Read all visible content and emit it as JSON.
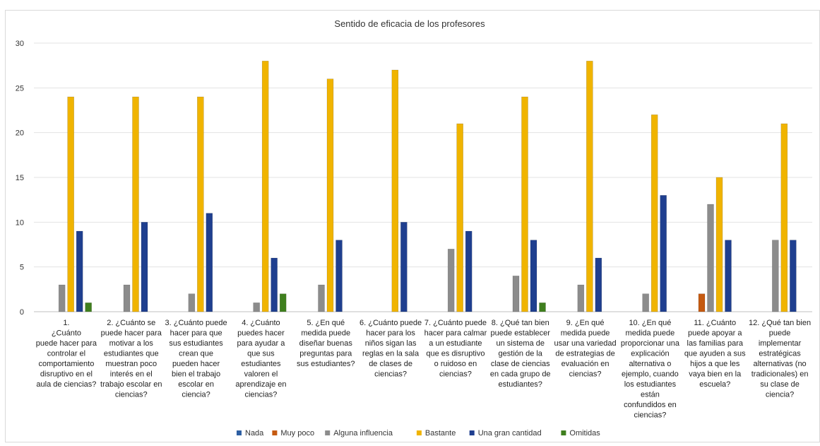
{
  "chart_data": {
    "type": "bar",
    "title": "Sentido de eficacia de los profesores",
    "xlabel": "",
    "ylabel": "",
    "ylim": [
      0,
      30
    ],
    "yticks": [
      0,
      5,
      10,
      15,
      20,
      25,
      30
    ],
    "grid": true,
    "legend_position": "bottom",
    "categories": [
      "1. ¿Cuánto puede hacer para controlar el comportamiento disruptivo en el aula de ciencias?",
      "2. ¿Cuánto se puede hacer para motivar a los estudiantes que muestran poco interés en el trabajo escolar en ciencias?",
      "3. ¿Cuánto puede hacer para que sus estudiantes crean que pueden hacer bien el trabajo escolar en ciencia?",
      "4. ¿Cuánto puedes hacer para ayudar a que sus estudiantes valoren el aprendizaje en ciencias?",
      "5. ¿En qué medida puede diseñar buenas preguntas para sus estudiantes?",
      "6. ¿Cuánto puede hacer para los niños sigan las reglas en la sala de clases de ciencias?",
      "7. ¿Cuánto puede hacer para calmar a un estudiante que es disruptivo o ruidoso en ciencias?",
      "8. ¿Qué tan bien puede establecer un sistema de gestión de la clase de ciencias en cada grupo de estudiantes?",
      "9. ¿En qué medida puede usar una variedad de estrategias de evaluación en ciencias?",
      "10. ¿En qué medida puede proporcionar una explicación alternativa o ejemplo, cuando los estudiantes están confundidos en ciencias?",
      "11. ¿Cuánto puede apoyar a las familias para que ayuden a sus hijos a que les vaya bien en la escuela?",
      "12. ¿Qué tan bien puede implementar estratégicas alternativas (no tradicionales) en su clase de ciencia?"
    ],
    "category_lines": [
      [
        "1.",
        "¿Cuánto",
        "puede hacer para",
        "controlar el",
        "comportamiento",
        "disruptivo en el",
        "aula de ciencias?"
      ],
      [
        "2. ¿Cuánto se",
        "puede hacer para",
        "motivar a los",
        "estudiantes que",
        "muestran poco",
        "interés en el",
        "trabajo escolar en",
        "ciencias?"
      ],
      [
        "3. ¿Cuánto puede",
        "hacer para que",
        "sus estudiantes",
        "crean que",
        "pueden hacer",
        "bien el trabajo",
        "escolar en",
        "ciencia?"
      ],
      [
        "4. ¿Cuánto",
        "puedes hacer",
        "para ayudar a",
        "que sus",
        "estudiantes",
        "valoren el",
        "aprendizaje en",
        "ciencias?"
      ],
      [
        "5. ¿En qué",
        "medida puede",
        "diseñar buenas",
        "preguntas para",
        "sus estudiantes?"
      ],
      [
        "6. ¿Cuánto puede",
        "hacer para los",
        "niños sigan las",
        "reglas en la sala",
        "de clases de",
        "ciencias?"
      ],
      [
        "7. ¿Cuánto puede",
        "hacer para calmar",
        "a un estudiante",
        "que es disruptivo",
        "o ruidoso en",
        "ciencias?"
      ],
      [
        "8. ¿Qué tan bien",
        "puede establecer",
        "un sistema de",
        "gestión de la",
        "clase de ciencias",
        "en cada grupo de",
        "estudiantes?"
      ],
      [
        "9. ¿En qué",
        "medida puede",
        "usar una variedad",
        "de estrategias de",
        "evaluación en",
        "ciencias?"
      ],
      [
        "10. ¿En qué",
        "medida puede",
        "proporcionar una",
        "explicación",
        "alternativa o",
        "ejemplo, cuando",
        "los estudiantes",
        "están",
        "confundidos en",
        "ciencias?"
      ],
      [
        "11. ¿Cuánto",
        "puede apoyar a",
        "las familias para",
        "que ayuden a sus",
        "hijos a que les",
        "vaya bien en la",
        "escuela?"
      ],
      [
        "12. ¿Qué tan bien",
        "puede",
        "implementar",
        "estratégicas",
        "alternativas (no",
        "tradicionales) en",
        "su clase de",
        "ciencia?"
      ]
    ],
    "series": [
      {
        "name": "Nada",
        "color": "#2E5FA3",
        "values": [
          0,
          0,
          0,
          0,
          0,
          0,
          0,
          0,
          0,
          0,
          0,
          0
        ]
      },
      {
        "name": "Muy poco",
        "color": "#C55A11",
        "values": [
          0,
          0,
          0,
          0,
          0,
          0,
          0,
          0,
          0,
          0,
          2,
          0
        ]
      },
      {
        "name": "Alguna influencia",
        "color": "#8C8C8C",
        "values": [
          3,
          3,
          2,
          1,
          3,
          0,
          7,
          4,
          3,
          2,
          12,
          8
        ]
      },
      {
        "name": "Bastante",
        "color": "#F0B400",
        "values": [
          24,
          24,
          24,
          28,
          26,
          27,
          21,
          24,
          28,
          22,
          15,
          21
        ]
      },
      {
        "name": "Una gran cantidad",
        "color": "#1F3F8F",
        "values": [
          9,
          10,
          11,
          6,
          8,
          10,
          9,
          8,
          6,
          13,
          8,
          8
        ]
      },
      {
        "name": "Omitidas",
        "color": "#3F7F1E",
        "values": [
          1,
          0,
          0,
          2,
          0,
          0,
          0,
          1,
          0,
          0,
          0,
          0
        ]
      }
    ]
  }
}
